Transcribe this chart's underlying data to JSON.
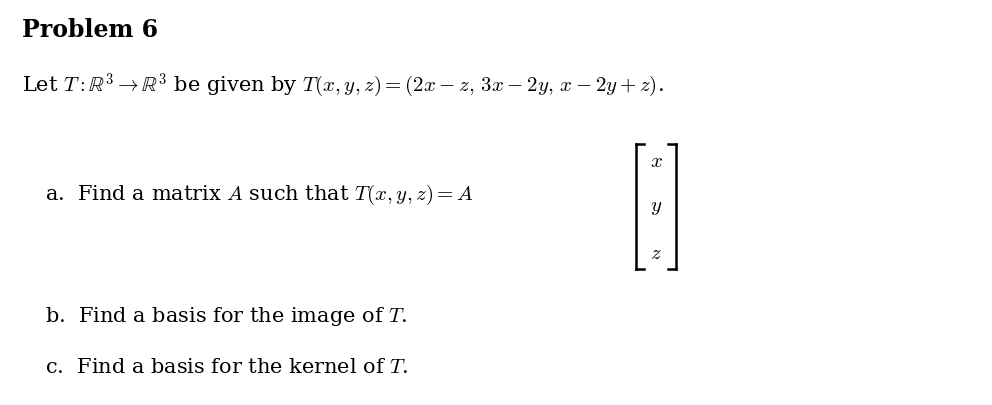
{
  "title": "Problem 6",
  "title_fontsize": 17,
  "title_fontweight": "bold",
  "body_fontsize": 15,
  "background_color": "#ffffff",
  "text_color": "#000000",
  "fig_width": 9.92,
  "fig_height": 4.06,
  "dpi": 100
}
